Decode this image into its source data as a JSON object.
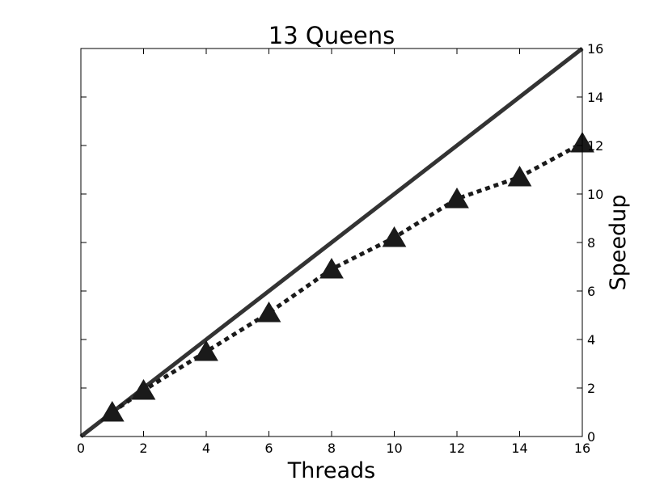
{
  "chart_data": {
    "type": "line",
    "title": "13 Queens",
    "xlabel": "Threads",
    "ylabel": "Speedup",
    "xlim": [
      0,
      16
    ],
    "ylim": [
      0,
      16
    ],
    "x_ticks": [
      0,
      2,
      4,
      6,
      8,
      10,
      12,
      14,
      16
    ],
    "y_ticks": [
      0,
      2,
      4,
      6,
      8,
      10,
      12,
      14,
      16
    ],
    "y_axis_position": "right",
    "grid": false,
    "legend": "none",
    "series": [
      {
        "style": "solid",
        "color": "#333333",
        "x": [
          0,
          16
        ],
        "y": [
          0,
          16
        ]
      },
      {
        "style": "dotted",
        "marker": "triangle",
        "color": "#1a1a1a",
        "x": [
          1,
          2,
          4,
          6,
          8,
          10,
          12,
          14,
          16
        ],
        "y": [
          1.0,
          1.9,
          3.5,
          5.1,
          6.9,
          8.2,
          9.8,
          10.7,
          12.1
        ]
      }
    ]
  }
}
